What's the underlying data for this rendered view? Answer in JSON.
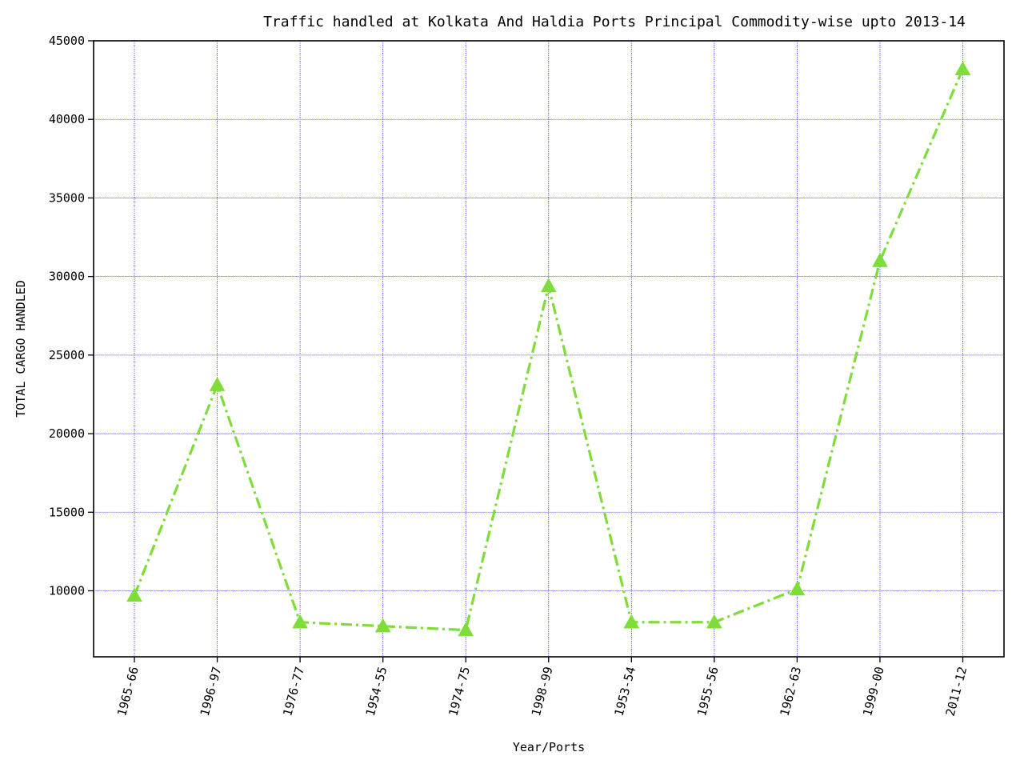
{
  "chart_data": {
    "type": "line",
    "title": "Traffic handled at Kolkata And Haldia Ports Principal Commodity-wise upto 2013-14",
    "xlabel": "Year/Ports",
    "ylabel": "TOTAL CARGO HANDLED",
    "categories": [
      "1965-66",
      "1996-97",
      "1976-77",
      "1954-55",
      "1974-75",
      "1998-99",
      "1953-54",
      "1955-56",
      "1962-63",
      "1999-00",
      "2011-12"
    ],
    "series": [
      {
        "values": [
          9700,
          23100,
          8000,
          7750,
          7500,
          29400,
          8000,
          8000,
          10100,
          31000,
          43200
        ],
        "color": "#7fdd3a",
        "line_style": "dash-dot",
        "marker": "triangle-up"
      }
    ],
    "ylim": [
      5800,
      45000
    ],
    "yticks": [
      10000,
      15000,
      20000,
      25000,
      30000,
      35000,
      40000,
      45000
    ],
    "grid": true,
    "grid_color": "#0000ff",
    "xtick_rotation": "vertical-ish (75deg)"
  }
}
